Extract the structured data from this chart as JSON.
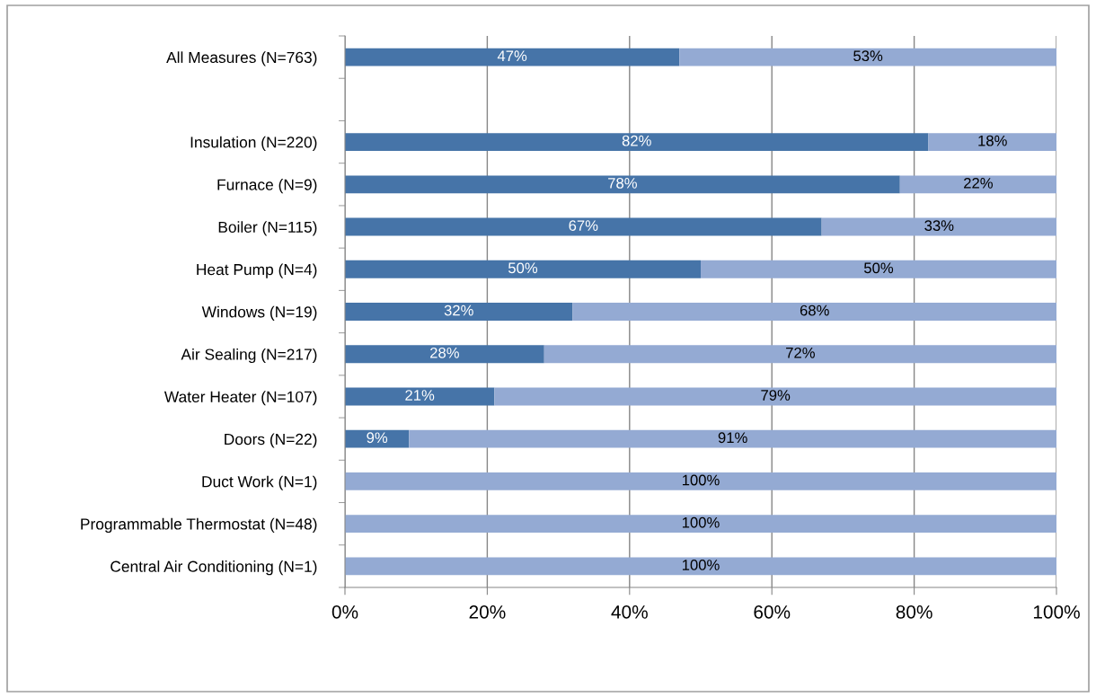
{
  "chart_data": {
    "type": "bar",
    "orientation": "horizontal",
    "stacked": true,
    "categories": [
      "All Measures (N=763)",
      null,
      "Insulation (N=220)",
      "Furnace (N=9)",
      "Boiler (N=115)",
      "Heat Pump (N=4)",
      "Windows (N=19)",
      "Air Sealing (N=217)",
      "Water Heater (N=107)",
      "Doors (N=22)",
      "Duct Work (N=1)",
      "Programmable Thermostat (N=48)",
      "Central Air Conditioning (N=1)"
    ],
    "series": [
      {
        "color": "#4674a8",
        "values": [
          47,
          null,
          82,
          78,
          67,
          50,
          32,
          28,
          21,
          9,
          0,
          0,
          0
        ],
        "value_labels": [
          "47%",
          null,
          "82%",
          "78%",
          "67%",
          "50%",
          "32%",
          "28%",
          "21%",
          "9%",
          null,
          null,
          null
        ]
      },
      {
        "color": "#94aad3",
        "values": [
          53,
          null,
          18,
          22,
          33,
          50,
          68,
          72,
          79,
          91,
          100,
          100,
          100
        ],
        "value_labels": [
          "53%",
          null,
          "18%",
          "22%",
          "33%",
          "50%",
          "68%",
          "72%",
          "79%",
          "91%",
          "100%",
          "100%",
          "100%"
        ]
      }
    ],
    "xlim": [
      0,
      100
    ],
    "xticks": [
      {
        "value": 0,
        "label": "0%"
      },
      {
        "value": 20,
        "label": "20%"
      },
      {
        "value": 40,
        "label": "40%"
      },
      {
        "value": 60,
        "label": "60%"
      },
      {
        "value": 80,
        "label": "80%"
      },
      {
        "value": 100,
        "label": "100%"
      }
    ],
    "grid": "x"
  }
}
